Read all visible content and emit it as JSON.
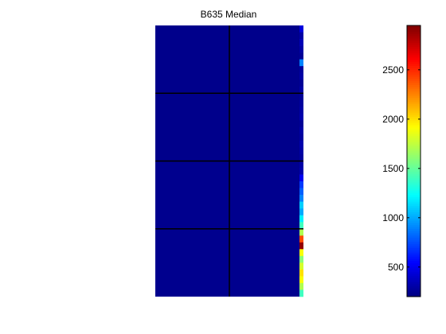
{
  "chart_data": {
    "type": "heatmap",
    "title": "B635 Median",
    "xlabel": "",
    "ylabel": "",
    "grid": "4 block rows x 2 block columns separated by black lines",
    "colormap": "jet",
    "color_range": [
      200,
      2950
    ],
    "colorbar": {
      "position": "right",
      "ticks": [
        500,
        1000,
        1500,
        2000,
        2500
      ],
      "tick_labels": [
        "500",
        "1000",
        "1500",
        "2000",
        "2500"
      ]
    },
    "background_value": 230,
    "block_rows": [
      {
        "block": 1,
        "typical_value": 230
      },
      {
        "block": 2,
        "typical_value": 230
      },
      {
        "block": 3,
        "typical_value": 240
      },
      {
        "block": 4,
        "typical_value": 240
      }
    ],
    "edge_column": [
      {
        "block_row": 1,
        "values": [
          450,
          300,
          350,
          300,
          260,
          900,
          280,
          300,
          260,
          300
        ]
      },
      {
        "block_row": 2,
        "values": [
          260,
          280,
          300,
          320,
          260,
          300,
          280,
          320,
          300,
          280
        ]
      },
      {
        "block_row": 3,
        "values": [
          300,
          320,
          500,
          700,
          800,
          900,
          1100,
          1000,
          1200,
          1400
        ]
      },
      {
        "block_row": 4,
        "values": [
          1700,
          2400,
          2900,
          1900,
          1600,
          1800,
          2000,
          1900,
          1700,
          1400
        ]
      }
    ],
    "colors": {
      "frame": "#000000",
      "divider": "#000000"
    }
  }
}
